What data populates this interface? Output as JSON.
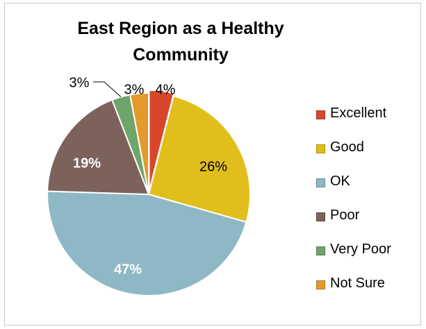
{
  "chart_data": {
    "type": "pie",
    "title": "East Region as a Healthy Community",
    "title_lines": [
      "East Region as a Healthy",
      "Community"
    ],
    "legend_position": "right",
    "slices": [
      {
        "label": "Excellent",
        "value": 4,
        "data_label": "4%",
        "color": "#d9472b"
      },
      {
        "label": "Good",
        "value": 26,
        "data_label": "26%",
        "color": "#e0bf1c"
      },
      {
        "label": "OK",
        "value": 47,
        "data_label": "47%",
        "color": "#8fb8c6"
      },
      {
        "label": "Poor",
        "value": 19,
        "data_label": "19%",
        "color": "#7d625c"
      },
      {
        "label": "Very Poor",
        "value": 3,
        "data_label": "3%",
        "color": "#6fa56a"
      },
      {
        "label": "Not Sure",
        "value": 3,
        "data_label": "3%",
        "color": "#e39a2c"
      }
    ]
  }
}
